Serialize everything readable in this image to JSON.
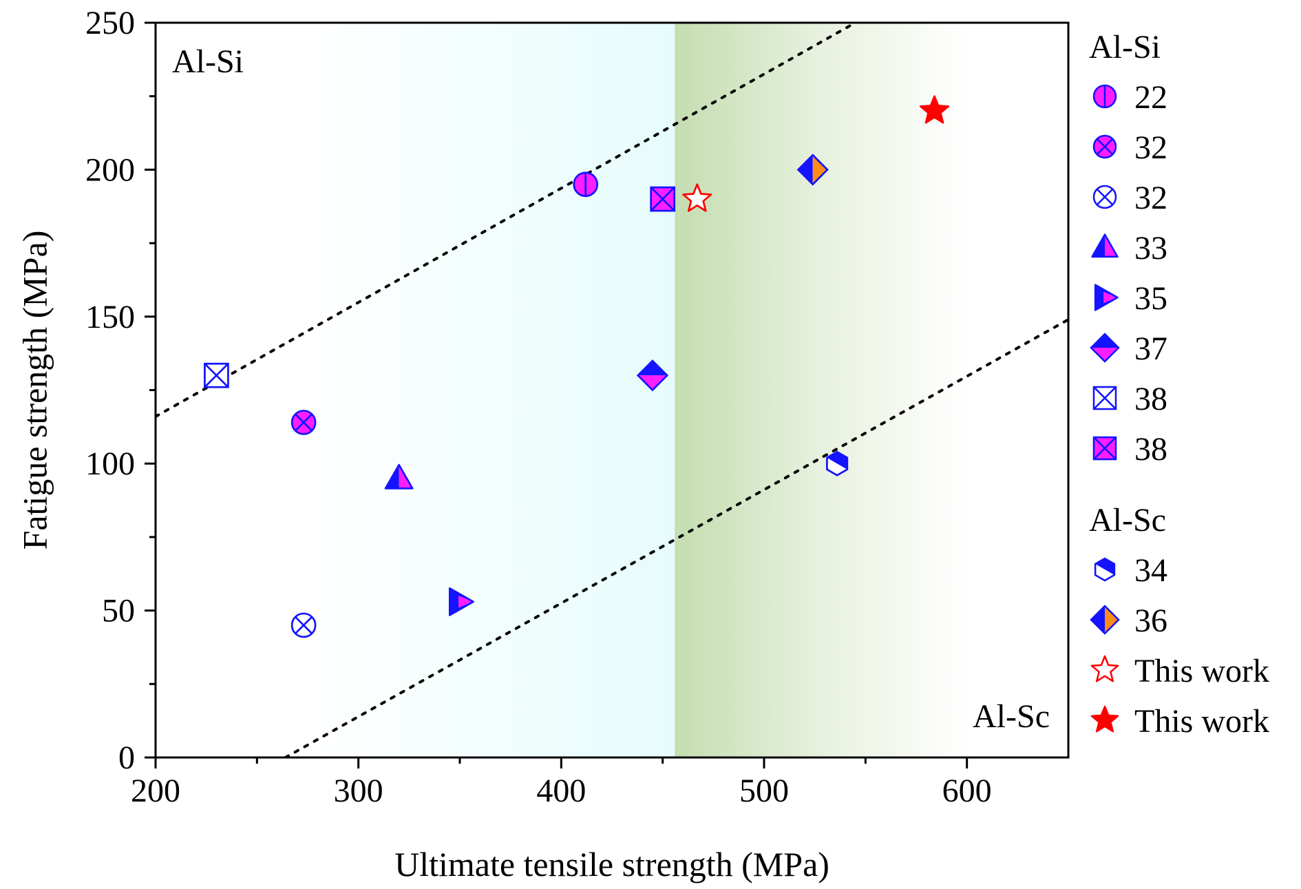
{
  "colors": {
    "blue": "#1414ff",
    "magenta": "#ff1eff",
    "orange": "#ff8c1a",
    "red": "#ff0000",
    "white": "#ffffff",
    "region_left": "#e6fcfc",
    "region_right": "#c4ddb1"
  },
  "chart_data": {
    "type": "scatter",
    "xlabel": "Ultimate tensile strength (MPa)",
    "ylabel": "Fatigue strength (MPa)",
    "xlim": [
      200,
      650
    ],
    "ylim": [
      0,
      250
    ],
    "x_ticks": [
      200,
      300,
      400,
      500,
      600
    ],
    "y_ticks": [
      0,
      50,
      100,
      150,
      200,
      250
    ],
    "x_tick_labels": [
      "200",
      "300",
      "400",
      "500",
      "600"
    ],
    "y_tick_labels": [
      "0",
      "50",
      "100",
      "150",
      "200",
      "250"
    ],
    "grid": false,
    "legend_position": "right-outside",
    "region_labels": [
      {
        "text": "Al-Si",
        "position": "top-left"
      },
      {
        "text": "Al-Sc",
        "position": "bottom-right"
      }
    ],
    "shaded_regions": [
      {
        "from": 200,
        "to": 456,
        "style": "fade-in-rightward",
        "color": "#e6fcfc"
      },
      {
        "from": 456,
        "to": 600,
        "style": "fade-out-rightward",
        "color": "#c4ddb1"
      }
    ],
    "trend_lines": [
      {
        "style": "dotted",
        "points": [
          [
            200,
            116
          ],
          [
            545,
            250
          ]
        ]
      },
      {
        "style": "dotted",
        "points": [
          [
            264,
            0
          ],
          [
            650,
            149
          ]
        ]
      }
    ],
    "legend_groups": [
      {
        "title": "Al-Si",
        "entries": [
          0,
          1,
          2,
          3,
          4,
          5,
          6,
          7
        ]
      },
      {
        "title": "Al-Sc",
        "entries": [
          8,
          9,
          10,
          11
        ]
      }
    ],
    "series": [
      {
        "name": "22",
        "group": "Al-Si",
        "marker": "circle-vbar",
        "points": [
          [
            412,
            195
          ]
        ]
      },
      {
        "name": "32",
        "group": "Al-Si",
        "marker": "circle-x-magenta",
        "points": [
          [
            273,
            114
          ]
        ]
      },
      {
        "name": "32",
        "group": "Al-Si",
        "marker": "circle-x-open",
        "points": [
          [
            273,
            45
          ]
        ]
      },
      {
        "name": "33",
        "group": "Al-Si",
        "marker": "triangle-half",
        "points": [
          [
            320,
            95
          ]
        ]
      },
      {
        "name": "35",
        "group": "Al-Si",
        "marker": "triangle-right-half",
        "points": [
          [
            350,
            53
          ]
        ]
      },
      {
        "name": "37",
        "group": "Al-Si",
        "marker": "diamond-bottom-half",
        "points": [
          [
            445,
            130
          ]
        ]
      },
      {
        "name": "38",
        "group": "Al-Si",
        "marker": "square-x-open",
        "points": [
          [
            230,
            130
          ]
        ]
      },
      {
        "name": "38",
        "group": "Al-Si",
        "marker": "square-x-magenta",
        "points": [
          [
            450,
            190
          ]
        ]
      },
      {
        "name": "34",
        "group": "Al-Sc",
        "marker": "hexagon-top-half",
        "points": [
          [
            536,
            100
          ]
        ]
      },
      {
        "name": "36",
        "group": "Al-Sc",
        "marker": "diamond-right-half",
        "points": [
          [
            524,
            200
          ]
        ]
      },
      {
        "name": "This work",
        "group": "Al-Sc",
        "marker": "star-open",
        "points": [
          [
            467,
            190
          ]
        ]
      },
      {
        "name": "This work",
        "group": "Al-Sc",
        "marker": "star-filled",
        "points": [
          [
            584,
            220
          ]
        ]
      }
    ]
  }
}
